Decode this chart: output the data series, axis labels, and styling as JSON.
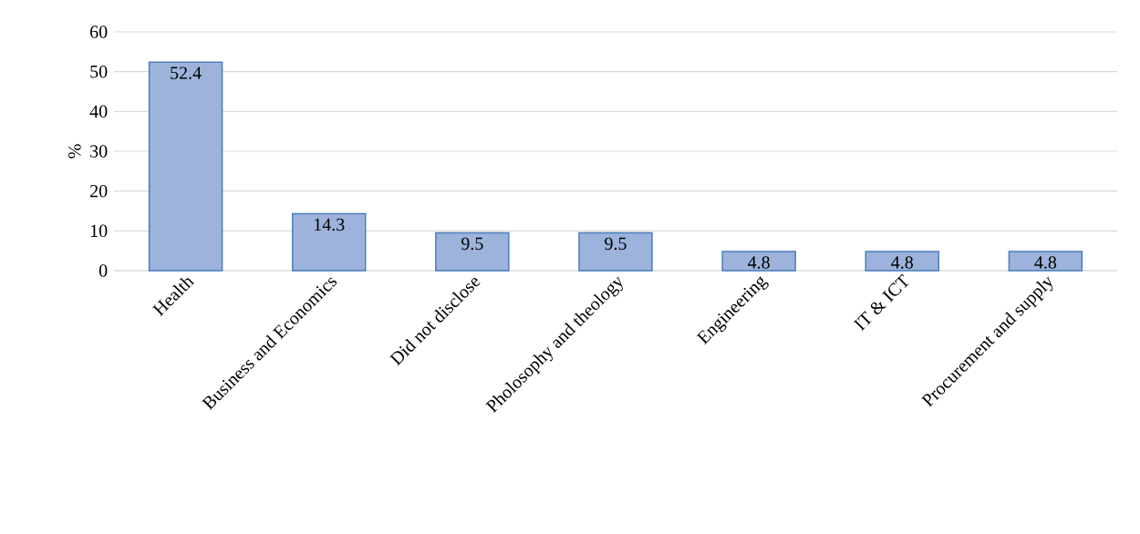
{
  "chart_data": {
    "type": "bar",
    "ylabel": "%",
    "categories": [
      "Health",
      "Business and Economics",
      "Did not disclose",
      "Pholosophy and theology",
      "Engineering",
      "IT & ICT",
      "Procurement and supply"
    ],
    "values": [
      52.4,
      14.3,
      9.5,
      9.5,
      4.8,
      4.8,
      4.8
    ],
    "color": "#9db3db",
    "ylim": [
      0,
      60
    ],
    "yticks": [
      0,
      10,
      20,
      30,
      40,
      50,
      60
    ],
    "grid": "y",
    "data_labels": true
  }
}
